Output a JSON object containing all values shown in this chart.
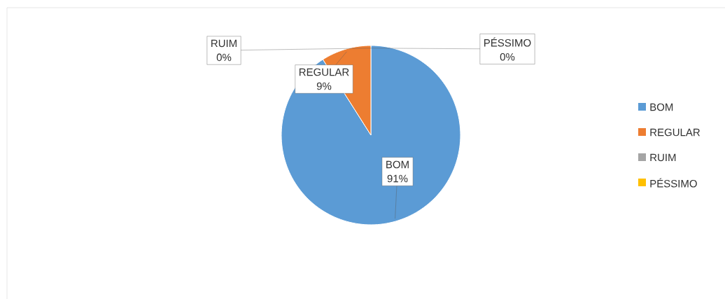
{
  "chart_data": {
    "type": "pie",
    "categories": [
      "BOM",
      "REGULAR",
      "RUIM",
      "PÉSSIMO"
    ],
    "values": [
      91,
      9,
      0,
      0
    ],
    "colors": [
      "#5b9bd5",
      "#ed7d31",
      "#a5a5a5",
      "#ffc000"
    ],
    "value_labels": [
      "91%",
      "9%",
      "0%",
      "0%"
    ],
    "legend": "right"
  }
}
